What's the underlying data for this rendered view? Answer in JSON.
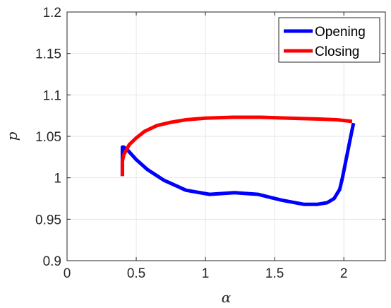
{
  "chart_data": {
    "type": "line",
    "xlabel": "α",
    "ylabel": "p",
    "xlim": [
      0,
      2.3
    ],
    "ylim": [
      0.9,
      1.2
    ],
    "xticks": [
      0,
      0.5,
      1,
      1.5,
      2
    ],
    "xtick_labels": [
      "0",
      "0.5",
      "1",
      "1.5",
      "2"
    ],
    "yticks": [
      0.9,
      0.95,
      1,
      1.05,
      1.1,
      1.15,
      1.2
    ],
    "ytick_labels": [
      "0.9",
      "0.95",
      "1",
      "1.05",
      "1.1",
      "1.15",
      "1.2"
    ],
    "grid": true,
    "legend_position": "top-right",
    "series": [
      {
        "name": "Opening",
        "color": "#0000ff",
        "x": [
          0.4,
          0.4,
          0.41,
          0.44,
          0.5,
          0.58,
          0.7,
          0.86,
          1.03,
          1.21,
          1.38,
          1.55,
          1.71,
          1.81,
          1.88,
          1.93,
          1.97,
          1.99,
          2.02,
          2.05,
          2.07
        ],
        "y": [
          1.002,
          1.037,
          1.037,
          1.033,
          1.022,
          1.01,
          0.997,
          0.985,
          0.98,
          0.982,
          0.98,
          0.973,
          0.968,
          0.968,
          0.97,
          0.975,
          0.986,
          1.0,
          1.025,
          1.05,
          1.066
        ]
      },
      {
        "name": "Closing",
        "color": "#ff0000",
        "x": [
          0.4,
          0.4,
          0.41,
          0.45,
          0.5,
          0.56,
          0.65,
          0.75,
          0.86,
          1.0,
          1.2,
          1.4,
          1.6,
          1.8,
          1.95,
          2.06
        ],
        "y": [
          1.002,
          1.02,
          1.028,
          1.04,
          1.048,
          1.056,
          1.063,
          1.067,
          1.07,
          1.072,
          1.073,
          1.073,
          1.072,
          1.071,
          1.07,
          1.068
        ]
      }
    ]
  }
}
